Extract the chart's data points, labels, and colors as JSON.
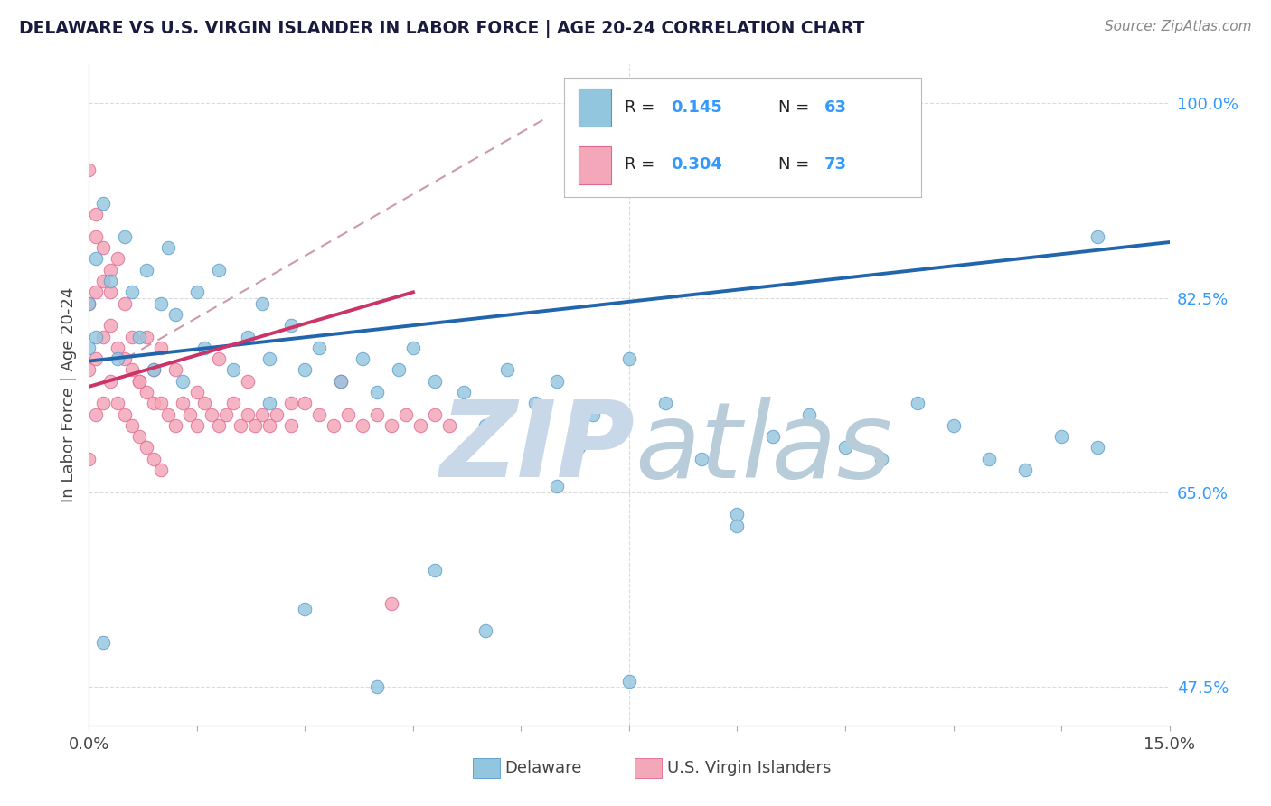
{
  "title": "DELAWARE VS U.S. VIRGIN ISLANDER IN LABOR FORCE | AGE 20-24 CORRELATION CHART",
  "source": "Source: ZipAtlas.com",
  "ylabel": "In Labor Force | Age 20-24",
  "xlim": [
    0.0,
    0.15
  ],
  "ylim": [
    0.44,
    1.035
  ],
  "ytick_vals": [
    1.0,
    0.825,
    0.65,
    0.475
  ],
  "ytick_labels": [
    "100.0%",
    "82.5%",
    "65.0%",
    "47.5%"
  ],
  "xtick_vals": [
    0.0,
    0.15
  ],
  "xtick_labels": [
    "0.0%",
    "15.0%"
  ],
  "delaware_color": "#92c5de",
  "virgin_color": "#f4a7b9",
  "delaware_edge": "#5599cc",
  "virgin_edge": "#e06890",
  "trend_blue": "#2166ac",
  "trend_pink": "#cc3366",
  "trend_dash_color": "#cc9aaa",
  "watermark_zip_color": "#c8d8e8",
  "watermark_atlas_color": "#b8ccda",
  "bg_color": "#ffffff",
  "title_color": "#1a1a3e",
  "source_color": "#888888",
  "label_color": "#444444",
  "right_tick_color": "#3399ff",
  "grid_color": "#cccccc",
  "legend_border": "#bbbbbb",
  "del_x": [
    0.0,
    0.0,
    0.001,
    0.001,
    0.002,
    0.003,
    0.004,
    0.005,
    0.006,
    0.007,
    0.008,
    0.009,
    0.01,
    0.011,
    0.012,
    0.013,
    0.015,
    0.016,
    0.018,
    0.02,
    0.022,
    0.024,
    0.025,
    0.028,
    0.03,
    0.032,
    0.035,
    0.038,
    0.04,
    0.043,
    0.045,
    0.048,
    0.052,
    0.055,
    0.058,
    0.062,
    0.065,
    0.068,
    0.07,
    0.075,
    0.08,
    0.085,
    0.09,
    0.095,
    0.1,
    0.105,
    0.11,
    0.115,
    0.12,
    0.125,
    0.13,
    0.135,
    0.14,
    0.002,
    0.025,
    0.04,
    0.065,
    0.09,
    0.055,
    0.03,
    0.048,
    0.075,
    0.14
  ],
  "del_y": [
    0.82,
    0.78,
    0.86,
    0.79,
    0.91,
    0.84,
    0.77,
    0.88,
    0.83,
    0.79,
    0.85,
    0.76,
    0.82,
    0.87,
    0.81,
    0.75,
    0.83,
    0.78,
    0.85,
    0.76,
    0.79,
    0.82,
    0.77,
    0.8,
    0.76,
    0.78,
    0.75,
    0.77,
    0.74,
    0.76,
    0.78,
    0.75,
    0.74,
    0.71,
    0.76,
    0.73,
    0.75,
    0.69,
    0.72,
    0.77,
    0.73,
    0.68,
    0.63,
    0.7,
    0.72,
    0.69,
    0.68,
    0.73,
    0.71,
    0.68,
    0.67,
    0.7,
    0.88,
    0.515,
    0.73,
    0.475,
    0.655,
    0.62,
    0.525,
    0.545,
    0.58,
    0.48,
    0.69
  ],
  "vir_x": [
    0.0,
    0.0,
    0.0,
    0.001,
    0.001,
    0.001,
    0.001,
    0.002,
    0.002,
    0.002,
    0.003,
    0.003,
    0.003,
    0.004,
    0.004,
    0.005,
    0.005,
    0.006,
    0.006,
    0.007,
    0.007,
    0.008,
    0.008,
    0.009,
    0.009,
    0.01,
    0.01,
    0.011,
    0.012,
    0.013,
    0.014,
    0.015,
    0.016,
    0.017,
    0.018,
    0.019,
    0.02,
    0.021,
    0.022,
    0.023,
    0.024,
    0.025,
    0.026,
    0.028,
    0.03,
    0.032,
    0.034,
    0.036,
    0.038,
    0.04,
    0.042,
    0.044,
    0.046,
    0.048,
    0.05,
    0.0,
    0.001,
    0.002,
    0.003,
    0.004,
    0.005,
    0.006,
    0.007,
    0.008,
    0.009,
    0.01,
    0.012,
    0.015,
    0.018,
    0.022,
    0.028,
    0.035,
    0.042
  ],
  "vir_y": [
    0.82,
    0.76,
    0.68,
    0.88,
    0.83,
    0.77,
    0.72,
    0.84,
    0.79,
    0.73,
    0.85,
    0.8,
    0.75,
    0.78,
    0.73,
    0.77,
    0.72,
    0.76,
    0.71,
    0.75,
    0.7,
    0.74,
    0.69,
    0.73,
    0.68,
    0.73,
    0.67,
    0.72,
    0.71,
    0.73,
    0.72,
    0.71,
    0.73,
    0.72,
    0.71,
    0.72,
    0.73,
    0.71,
    0.72,
    0.71,
    0.72,
    0.71,
    0.72,
    0.71,
    0.73,
    0.72,
    0.71,
    0.72,
    0.71,
    0.72,
    0.71,
    0.72,
    0.71,
    0.72,
    0.71,
    0.94,
    0.9,
    0.87,
    0.83,
    0.86,
    0.82,
    0.79,
    0.75,
    0.79,
    0.76,
    0.78,
    0.76,
    0.74,
    0.77,
    0.75,
    0.73,
    0.75,
    0.55
  ],
  "blue_trend_x": [
    0.0,
    0.15
  ],
  "blue_trend_y": [
    0.768,
    0.875
  ],
  "pink_trend_x": [
    0.0,
    0.045
  ],
  "pink_trend_y": [
    0.745,
    0.83
  ],
  "dash_trend_x": [
    0.005,
    0.063
  ],
  "dash_trend_y": [
    0.77,
    0.985
  ]
}
